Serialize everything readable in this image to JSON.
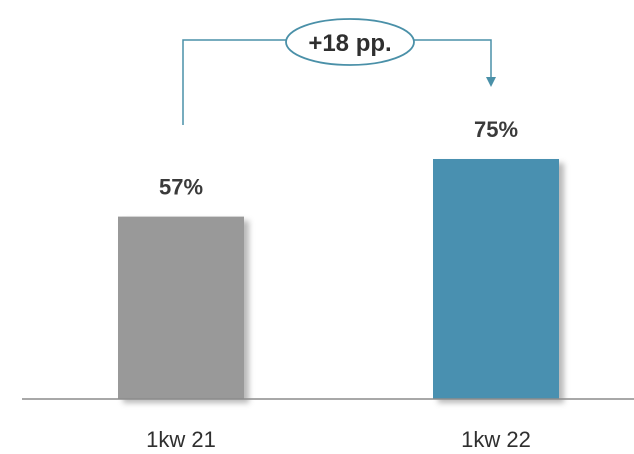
{
  "chart_data": {
    "type": "bar",
    "categories": [
      "1kw 21",
      "1kw 22"
    ],
    "values": [
      57,
      75
    ],
    "value_labels": [
      "57%",
      "75%"
    ],
    "unit": "%",
    "ylim": [
      0,
      100
    ],
    "colors": [
      "#999999",
      "#4a90b0"
    ],
    "grid": false,
    "legend": "none",
    "annotation": {
      "text": "+18 pp.",
      "from_category": "1kw 21",
      "to_category": "1kw 22",
      "color": "#4a90a8"
    }
  }
}
